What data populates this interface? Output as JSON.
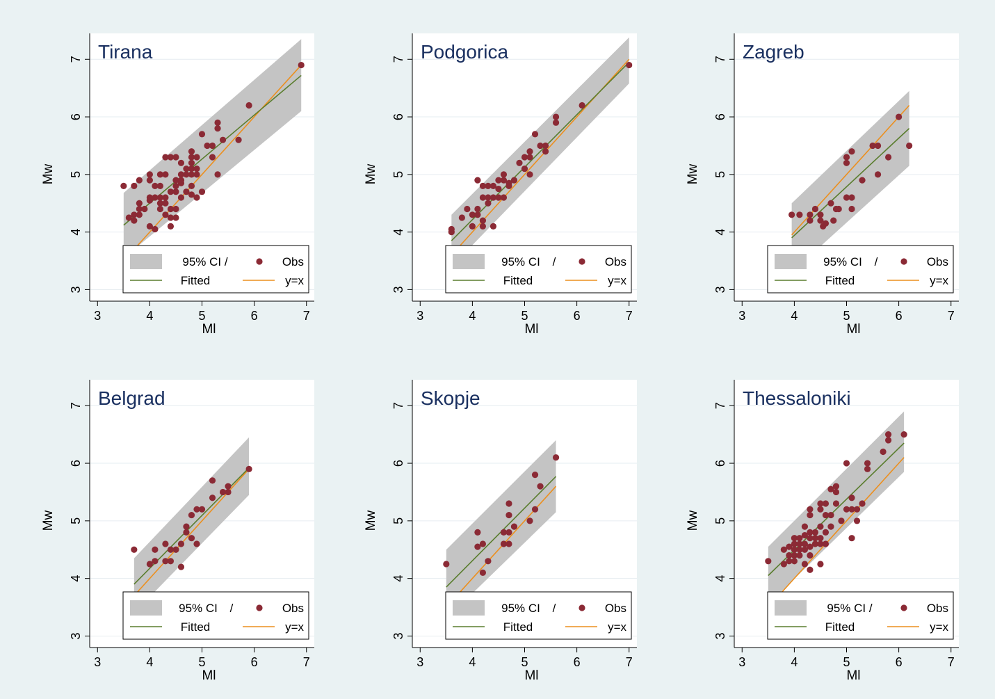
{
  "figure": {
    "colors": {
      "background": "#eaf2f3",
      "plot_background": "#ffffff",
      "ci_band": "#c4c4c4",
      "observations": "#8b2a35",
      "fitted": "#5a7d2e",
      "identity": "#ec8f1e",
      "title": "#1a3060",
      "grid": "#e6ecf0"
    }
  },
  "chart_data": [
    {
      "type": "scatter",
      "title": "Tirana",
      "xlabel": "Ml",
      "ylabel": "Mw",
      "xlim": [
        2.85,
        7.15
      ],
      "ylim": [
        2.8,
        7.45
      ],
      "xticks": [
        "3",
        "4",
        "5",
        "6",
        "7"
      ],
      "yticks": [
        "3",
        "4",
        "5",
        "6",
        "7"
      ],
      "grid": true,
      "legend": {
        "position": "bottom-right",
        "entries": [
          "95% CI /",
          "Obs",
          "Fitted",
          "y=x"
        ]
      },
      "fitted": {
        "x": [
          3.5,
          6.9
        ],
        "y": [
          4.12,
          6.72
        ]
      },
      "ci_band": {
        "x": [
          3.5,
          6.9
        ],
        "upper": [
          4.68,
          7.35
        ],
        "lower": [
          3.55,
          6.1
        ]
      },
      "identity": {
        "x": [
          3.5,
          6.9
        ],
        "y": [
          3.5,
          6.9
        ]
      },
      "points": [
        [
          3.5,
          4.8
        ],
        [
          3.6,
          4.25
        ],
        [
          3.7,
          4.2
        ],
        [
          3.7,
          4.3
        ],
        [
          3.7,
          4.8
        ],
        [
          3.8,
          4.5
        ],
        [
          3.8,
          4.3
        ],
        [
          3.8,
          4.9
        ],
        [
          3.8,
          4.4
        ],
        [
          3.9,
          4.4
        ],
        [
          4.0,
          5.0
        ],
        [
          4.0,
          4.9
        ],
        [
          4.0,
          4.6
        ],
        [
          4.0,
          4.55
        ],
        [
          4.0,
          4.1
        ],
        [
          4.1,
          4.6
        ],
        [
          4.1,
          4.8
        ],
        [
          4.1,
          4.05
        ],
        [
          4.2,
          4.8
        ],
        [
          4.2,
          4.6
        ],
        [
          4.2,
          4.5
        ],
        [
          4.2,
          5.0
        ],
        [
          4.2,
          4.4
        ],
        [
          4.3,
          5.3
        ],
        [
          4.3,
          5.0
        ],
        [
          4.3,
          4.6
        ],
        [
          4.3,
          4.3
        ],
        [
          4.3,
          4.5
        ],
        [
          4.4,
          5.3
        ],
        [
          4.4,
          4.7
        ],
        [
          4.4,
          4.4
        ],
        [
          4.4,
          4.25
        ],
        [
          4.4,
          4.1
        ],
        [
          4.5,
          5.3
        ],
        [
          4.5,
          4.8
        ],
        [
          4.5,
          4.9
        ],
        [
          4.5,
          4.4
        ],
        [
          4.5,
          4.25
        ],
        [
          4.5,
          4.7
        ],
        [
          4.6,
          5.0
        ],
        [
          4.6,
          4.85
        ],
        [
          4.6,
          5.2
        ],
        [
          4.6,
          4.6
        ],
        [
          4.6,
          4.9
        ],
        [
          4.7,
          5.1
        ],
        [
          4.7,
          4.7
        ],
        [
          4.7,
          5.0
        ],
        [
          4.8,
          5.4
        ],
        [
          4.8,
          5.3
        ],
        [
          4.8,
          5.1
        ],
        [
          4.8,
          5.0
        ],
        [
          4.8,
          4.8
        ],
        [
          4.8,
          4.65
        ],
        [
          4.8,
          5.2
        ],
        [
          4.9,
          5.3
        ],
        [
          4.9,
          5.1
        ],
        [
          4.9,
          5.0
        ],
        [
          4.9,
          4.6
        ],
        [
          5.0,
          5.7
        ],
        [
          5.0,
          4.7
        ],
        [
          5.1,
          5.5
        ],
        [
          5.2,
          5.5
        ],
        [
          5.2,
          5.3
        ],
        [
          5.3,
          5.9
        ],
        [
          5.3,
          5.8
        ],
        [
          5.3,
          5.0
        ],
        [
          5.4,
          5.6
        ],
        [
          5.7,
          5.6
        ],
        [
          5.9,
          6.2
        ],
        [
          6.9,
          6.9
        ]
      ]
    },
    {
      "type": "scatter",
      "title": "Podgorica",
      "xlabel": "Ml",
      "ylabel": "Mw",
      "xlim": [
        2.85,
        7.15
      ],
      "ylim": [
        2.8,
        7.45
      ],
      "xticks": [
        "3",
        "4",
        "5",
        "6",
        "7"
      ],
      "yticks": [
        "3",
        "4",
        "5",
        "6",
        "7"
      ],
      "grid": true,
      "legend": {
        "position": "bottom-right",
        "entries": [
          "95% CI",
          "/",
          "Obs",
          "Fitted",
          "y=x"
        ]
      },
      "fitted": {
        "x": [
          3.6,
          7.0
        ],
        "y": [
          3.85,
          6.95
        ]
      },
      "ci_band": {
        "x": [
          3.6,
          7.0
        ],
        "upper": [
          4.3,
          7.38
        ],
        "lower": [
          3.4,
          6.58
        ]
      },
      "identity": {
        "x": [
          3.6,
          7.0
        ],
        "y": [
          3.6,
          7.0
        ]
      },
      "points": [
        [
          3.6,
          4.0
        ],
        [
          3.6,
          4.05
        ],
        [
          3.8,
          4.25
        ],
        [
          3.9,
          4.4
        ],
        [
          4.0,
          4.1
        ],
        [
          4.0,
          4.3
        ],
        [
          4.1,
          4.9
        ],
        [
          4.1,
          4.4
        ],
        [
          4.1,
          4.3
        ],
        [
          4.2,
          4.8
        ],
        [
          4.2,
          4.6
        ],
        [
          4.2,
          4.2
        ],
        [
          4.2,
          4.1
        ],
        [
          4.3,
          4.8
        ],
        [
          4.3,
          4.6
        ],
        [
          4.3,
          4.5
        ],
        [
          4.4,
          4.8
        ],
        [
          4.4,
          4.6
        ],
        [
          4.4,
          4.1
        ],
        [
          4.5,
          4.9
        ],
        [
          4.5,
          4.75
        ],
        [
          4.5,
          4.6
        ],
        [
          4.6,
          5.0
        ],
        [
          4.6,
          4.9
        ],
        [
          4.6,
          4.6
        ],
        [
          4.7,
          4.85
        ],
        [
          4.7,
          4.8
        ],
        [
          4.8,
          4.9
        ],
        [
          4.9,
          5.2
        ],
        [
          5.0,
          5.3
        ],
        [
          5.0,
          5.1
        ],
        [
          5.1,
          5.4
        ],
        [
          5.1,
          5.3
        ],
        [
          5.1,
          5.0
        ],
        [
          5.2,
          5.7
        ],
        [
          5.3,
          5.5
        ],
        [
          5.4,
          5.5
        ],
        [
          5.4,
          5.4
        ],
        [
          5.6,
          6.0
        ],
        [
          5.6,
          5.9
        ],
        [
          6.1,
          6.2
        ],
        [
          7.0,
          6.9
        ]
      ]
    },
    {
      "type": "scatter",
      "title": "Zagreb",
      "xlabel": "Ml",
      "ylabel": "Mw",
      "xlim": [
        2.85,
        7.15
      ],
      "ylim": [
        2.8,
        7.45
      ],
      "xticks": [
        "3",
        "4",
        "5",
        "6",
        "7"
      ],
      "yticks": [
        "3",
        "4",
        "5",
        "6",
        "7"
      ],
      "grid": true,
      "legend": {
        "position": "bottom-right",
        "entries": [
          "95% CI",
          "/",
          "Obs",
          "Fitted",
          "y=x"
        ]
      },
      "fitted": {
        "x": [
          3.95,
          6.2
        ],
        "y": [
          3.9,
          5.8
        ]
      },
      "ci_band": {
        "x": [
          3.95,
          6.2
        ],
        "upper": [
          4.5,
          6.45
        ],
        "lower": [
          3.3,
          5.15
        ]
      },
      "identity": {
        "x": [
          3.95,
          6.2
        ],
        "y": [
          3.95,
          6.2
        ]
      },
      "points": [
        [
          3.95,
          4.3
        ],
        [
          4.1,
          4.3
        ],
        [
          4.3,
          4.3
        ],
        [
          4.3,
          4.2
        ],
        [
          4.4,
          4.4
        ],
        [
          4.5,
          4.3
        ],
        [
          4.5,
          4.2
        ],
        [
          4.55,
          4.1
        ],
        [
          4.6,
          4.15
        ],
        [
          4.7,
          4.5
        ],
        [
          4.75,
          4.2
        ],
        [
          4.8,
          4.4
        ],
        [
          4.85,
          4.4
        ],
        [
          5.0,
          5.3
        ],
        [
          5.0,
          5.2
        ],
        [
          5.0,
          4.6
        ],
        [
          5.1,
          5.4
        ],
        [
          5.1,
          4.6
        ],
        [
          5.1,
          4.4
        ],
        [
          5.3,
          4.9
        ],
        [
          5.5,
          5.5
        ],
        [
          5.6,
          5.5
        ],
        [
          5.6,
          5.0
        ],
        [
          5.8,
          5.3
        ],
        [
          6.0,
          6.0
        ],
        [
          6.2,
          5.5
        ]
      ]
    },
    {
      "type": "scatter",
      "title": "Belgrad",
      "xlabel": "Ml",
      "ylabel": "Mw",
      "xlim": [
        2.85,
        7.15
      ],
      "ylim": [
        2.8,
        7.45
      ],
      "xticks": [
        "3",
        "4",
        "5",
        "6",
        "7"
      ],
      "yticks": [
        "3",
        "4",
        "5",
        "6",
        "7"
      ],
      "grid": true,
      "legend": {
        "position": "bottom-right",
        "entries": [
          "95% CI",
          "/",
          "Obs",
          "Fitted",
          "y=x"
        ]
      },
      "fitted": {
        "x": [
          3.7,
          5.9
        ],
        "y": [
          3.9,
          5.92
        ]
      },
      "ci_band": {
        "x": [
          3.7,
          5.9
        ],
        "upper": [
          4.35,
          6.45
        ],
        "lower": [
          3.4,
          5.45
        ]
      },
      "identity": {
        "x": [
          3.7,
          5.9
        ],
        "y": [
          3.7,
          5.9
        ]
      },
      "points": [
        [
          3.7,
          4.5
        ],
        [
          4.0,
          4.25
        ],
        [
          4.1,
          4.3
        ],
        [
          4.1,
          4.5
        ],
        [
          4.3,
          4.6
        ],
        [
          4.3,
          4.3
        ],
        [
          4.4,
          4.5
        ],
        [
          4.4,
          4.3
        ],
        [
          4.5,
          4.5
        ],
        [
          4.6,
          4.6
        ],
        [
          4.6,
          4.2
        ],
        [
          4.7,
          4.9
        ],
        [
          4.7,
          4.8
        ],
        [
          4.8,
          5.1
        ],
        [
          4.8,
          4.7
        ],
        [
          4.9,
          5.2
        ],
        [
          4.9,
          4.6
        ],
        [
          5.0,
          5.2
        ],
        [
          5.2,
          5.7
        ],
        [
          5.2,
          5.4
        ],
        [
          5.4,
          5.5
        ],
        [
          5.5,
          5.6
        ],
        [
          5.5,
          5.5
        ],
        [
          5.9,
          5.9
        ]
      ]
    },
    {
      "type": "scatter",
      "title": "Skopje",
      "xlabel": "Ml",
      "ylabel": "Mw",
      "xlim": [
        2.85,
        7.15
      ],
      "ylim": [
        2.8,
        7.45
      ],
      "xticks": [
        "3",
        "4",
        "5",
        "6",
        "7"
      ],
      "yticks": [
        "3",
        "4",
        "5",
        "6",
        "7"
      ],
      "grid": true,
      "legend": {
        "position": "bottom-right",
        "entries": [
          "95% CI",
          "/",
          "Obs",
          "Fitted",
          "y=x"
        ]
      },
      "fitted": {
        "x": [
          3.5,
          5.6
        ],
        "y": [
          3.85,
          5.77
        ]
      },
      "ci_band": {
        "x": [
          3.5,
          5.6
        ],
        "upper": [
          4.5,
          6.4
        ],
        "lower": [
          3.3,
          5.15
        ]
      },
      "identity": {
        "x": [
          3.5,
          5.6
        ],
        "y": [
          3.5,
          5.6
        ]
      },
      "points": [
        [
          3.5,
          4.25
        ],
        [
          4.1,
          4.8
        ],
        [
          4.1,
          4.55
        ],
        [
          4.2,
          4.6
        ],
        [
          4.2,
          4.1
        ],
        [
          4.3,
          4.3
        ],
        [
          4.6,
          4.8
        ],
        [
          4.6,
          4.6
        ],
        [
          4.7,
          5.3
        ],
        [
          4.7,
          5.1
        ],
        [
          4.7,
          4.8
        ],
        [
          4.7,
          4.6
        ],
        [
          4.8,
          4.9
        ],
        [
          5.1,
          5.0
        ],
        [
          5.2,
          5.8
        ],
        [
          5.2,
          5.2
        ],
        [
          5.3,
          5.6
        ],
        [
          5.6,
          6.1
        ]
      ]
    },
    {
      "type": "scatter",
      "title": "Thessaloniki",
      "xlabel": "Ml",
      "ylabel": "Mw",
      "xlim": [
        2.85,
        7.15
      ],
      "ylim": [
        2.8,
        7.45
      ],
      "xticks": [
        "3",
        "4",
        "5",
        "6",
        "7"
      ],
      "yticks": [
        "3",
        "4",
        "5",
        "6",
        "7"
      ],
      "grid": true,
      "legend": {
        "position": "bottom-right",
        "entries": [
          "95% CI /",
          "Obs",
          "Fitted",
          "y=x"
        ]
      },
      "fitted": {
        "x": [
          3.5,
          6.1
        ],
        "y": [
          4.05,
          6.35
        ]
      },
      "ci_band": {
        "x": [
          3.5,
          6.1
        ],
        "upper": [
          4.55,
          6.9
        ],
        "lower": [
          3.55,
          5.85
        ]
      },
      "identity": {
        "x": [
          3.5,
          6.1
        ],
        "y": [
          3.5,
          6.1
        ]
      },
      "points": [
        [
          3.5,
          4.3
        ],
        [
          3.8,
          4.5
        ],
        [
          3.8,
          4.25
        ],
        [
          3.9,
          4.55
        ],
        [
          3.9,
          4.4
        ],
        [
          3.9,
          4.3
        ],
        [
          4.0,
          4.7
        ],
        [
          4.0,
          4.6
        ],
        [
          4.0,
          4.5
        ],
        [
          4.0,
          4.4
        ],
        [
          4.0,
          4.3
        ],
        [
          4.1,
          4.7
        ],
        [
          4.1,
          4.6
        ],
        [
          4.1,
          4.5
        ],
        [
          4.1,
          4.4
        ],
        [
          4.2,
          4.9
        ],
        [
          4.2,
          4.75
        ],
        [
          4.2,
          4.6
        ],
        [
          4.2,
          4.5
        ],
        [
          4.2,
          4.25
        ],
        [
          4.3,
          5.2
        ],
        [
          4.3,
          5.1
        ],
        [
          4.3,
          4.8
        ],
        [
          4.3,
          4.7
        ],
        [
          4.3,
          4.55
        ],
        [
          4.3,
          4.4
        ],
        [
          4.3,
          4.15
        ],
        [
          4.4,
          4.8
        ],
        [
          4.4,
          4.7
        ],
        [
          4.4,
          4.6
        ],
        [
          4.5,
          5.3
        ],
        [
          4.5,
          5.2
        ],
        [
          4.5,
          4.9
        ],
        [
          4.5,
          4.7
        ],
        [
          4.5,
          4.6
        ],
        [
          4.5,
          4.25
        ],
        [
          4.6,
          5.3
        ],
        [
          4.6,
          5.1
        ],
        [
          4.6,
          4.8
        ],
        [
          4.6,
          4.6
        ],
        [
          4.7,
          5.55
        ],
        [
          4.7,
          5.1
        ],
        [
          4.7,
          4.9
        ],
        [
          4.8,
          5.6
        ],
        [
          4.8,
          5.5
        ],
        [
          4.8,
          5.3
        ],
        [
          4.9,
          5.0
        ],
        [
          5.0,
          6.0
        ],
        [
          5.0,
          5.2
        ],
        [
          5.1,
          5.4
        ],
        [
          5.1,
          5.2
        ],
        [
          5.1,
          4.7
        ],
        [
          5.2,
          5.2
        ],
        [
          5.2,
          5.0
        ],
        [
          5.3,
          5.3
        ],
        [
          5.4,
          6.0
        ],
        [
          5.4,
          5.9
        ],
        [
          5.7,
          6.2
        ],
        [
          5.8,
          6.5
        ],
        [
          5.8,
          6.4
        ],
        [
          6.1,
          6.5
        ]
      ]
    }
  ]
}
